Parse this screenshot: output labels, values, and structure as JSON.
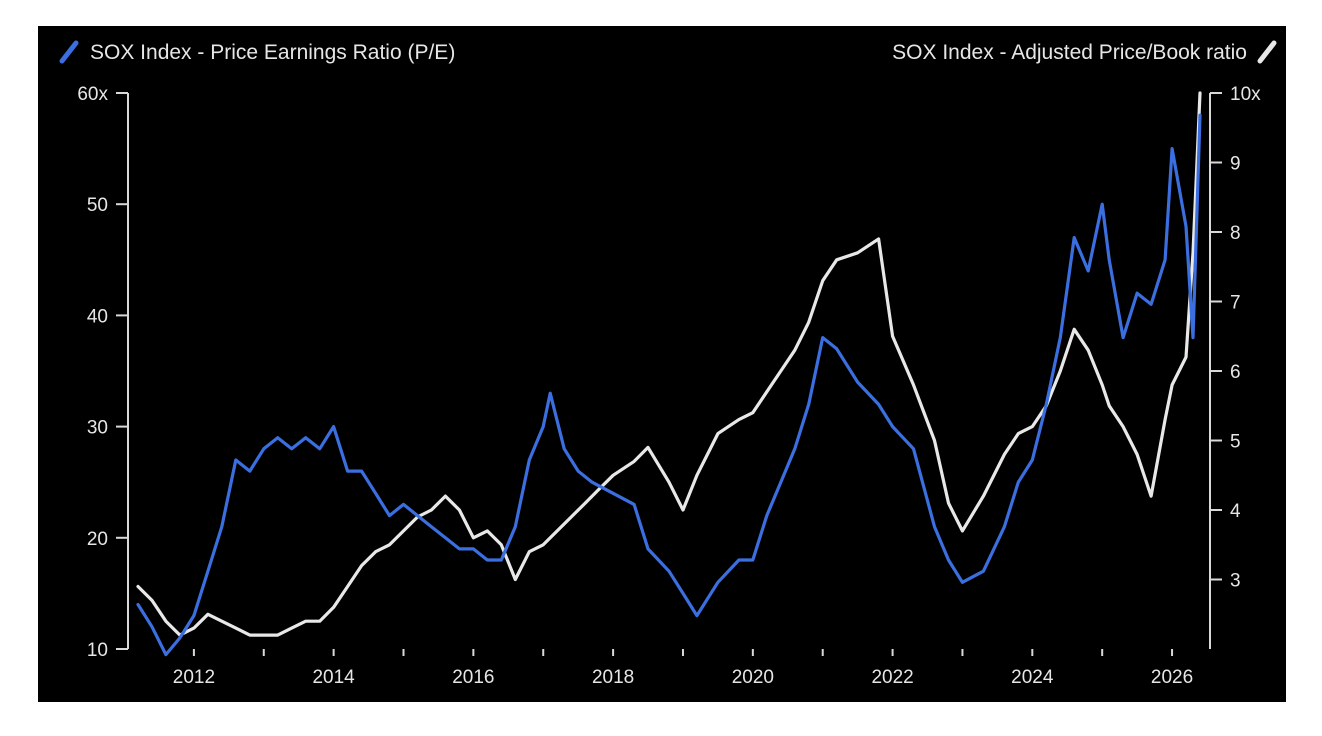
{
  "chart_data": {
    "type": "line",
    "left_axis_title": "SOX Index - Price Earnings Ratio (P/E)",
    "right_axis_title": "SOX Index - Adjusted Price/Book ratio",
    "x_range": [
      2011.2,
      2026.4
    ],
    "x_ticks": [
      "2012",
      "2014",
      "2016",
      "2018",
      "2020",
      "2022",
      "2024",
      "2026"
    ],
    "y_left": {
      "range": [
        10,
        60
      ],
      "ticks": [
        "10",
        "20",
        "30",
        "40",
        "50",
        "60x"
      ]
    },
    "y_right": {
      "range": [
        2,
        10
      ],
      "ticks": [
        "3",
        "4",
        "5",
        "6",
        "7",
        "8",
        "9",
        "10x"
      ]
    },
    "grid": false,
    "legend": "top",
    "colors": {
      "background": "#000000",
      "pe": "#3b6fe0",
      "pb": "#e8e8e8",
      "axis": "#d9d9d9"
    },
    "series": [
      {
        "name": "SOX Index - Price Earnings Ratio (P/E)",
        "axis": "left",
        "color": "#3b6fe0",
        "x": [
          2011.2,
          2011.4,
          2011.6,
          2011.8,
          2012.0,
          2012.2,
          2012.4,
          2012.6,
          2012.8,
          2013.0,
          2013.2,
          2013.4,
          2013.6,
          2013.8,
          2014.0,
          2014.2,
          2014.4,
          2014.6,
          2014.8,
          2015.0,
          2015.2,
          2015.4,
          2015.6,
          2015.8,
          2016.0,
          2016.2,
          2016.4,
          2016.6,
          2016.8,
          2017.0,
          2017.1,
          2017.3,
          2017.5,
          2017.7,
          2018.0,
          2018.3,
          2018.5,
          2018.8,
          2019.0,
          2019.2,
          2019.5,
          2019.8,
          2020.0,
          2020.2,
          2020.4,
          2020.6,
          2020.8,
          2021.0,
          2021.2,
          2021.5,
          2021.8,
          2022.0,
          2022.3,
          2022.6,
          2022.8,
          2023.0,
          2023.3,
          2023.6,
          2023.8,
          2024.0,
          2024.2,
          2024.4,
          2024.6,
          2024.8,
          2025.0,
          2025.1,
          2025.3,
          2025.5,
          2025.7,
          2025.9,
          2026.0,
          2026.2,
          2026.3,
          2026.4
        ],
        "y": [
          14,
          12,
          9.5,
          11,
          13,
          17,
          21,
          27,
          26,
          28,
          29,
          28,
          29,
          28,
          30,
          26,
          26,
          24,
          22,
          23,
          22,
          21,
          20,
          19,
          19,
          18,
          18,
          21,
          27,
          30,
          33,
          28,
          26,
          25,
          24,
          23,
          19,
          17,
          15,
          13,
          16,
          18,
          18,
          22,
          25,
          28,
          32,
          38,
          37,
          34,
          32,
          30,
          28,
          21,
          18,
          16,
          17,
          21,
          25,
          27,
          32,
          38,
          47,
          44,
          50,
          45,
          38,
          42,
          41,
          45,
          55,
          48,
          38,
          58
        ]
      },
      {
        "name": "SOX Index - Adjusted Price/Book ratio",
        "axis": "right",
        "color": "#e8e8e8",
        "x": [
          2011.2,
          2011.4,
          2011.6,
          2011.8,
          2012.0,
          2012.2,
          2012.4,
          2012.6,
          2012.8,
          2013.0,
          2013.2,
          2013.4,
          2013.6,
          2013.8,
          2014.0,
          2014.2,
          2014.4,
          2014.6,
          2014.8,
          2015.0,
          2015.2,
          2015.4,
          2015.6,
          2015.8,
          2016.0,
          2016.2,
          2016.4,
          2016.6,
          2016.8,
          2017.0,
          2017.2,
          2017.4,
          2017.6,
          2017.8,
          2018.0,
          2018.3,
          2018.5,
          2018.8,
          2019.0,
          2019.2,
          2019.5,
          2019.8,
          2020.0,
          2020.2,
          2020.4,
          2020.6,
          2020.8,
          2021.0,
          2021.2,
          2021.5,
          2021.8,
          2022.0,
          2022.3,
          2022.6,
          2022.8,
          2023.0,
          2023.3,
          2023.6,
          2023.8,
          2024.0,
          2024.2,
          2024.4,
          2024.6,
          2024.8,
          2025.0,
          2025.1,
          2025.3,
          2025.5,
          2025.7,
          2025.9,
          2026.0,
          2026.2,
          2026.3,
          2026.4
        ],
        "y": [
          2.9,
          2.7,
          2.4,
          2.2,
          2.3,
          2.5,
          2.4,
          2.3,
          2.2,
          2.2,
          2.2,
          2.3,
          2.4,
          2.4,
          2.6,
          2.9,
          3.2,
          3.4,
          3.5,
          3.7,
          3.9,
          4.0,
          4.2,
          4.0,
          3.6,
          3.7,
          3.5,
          3.0,
          3.4,
          3.5,
          3.7,
          3.9,
          4.1,
          4.3,
          4.5,
          4.7,
          4.9,
          4.4,
          4.0,
          4.5,
          5.1,
          5.3,
          5.4,
          5.7,
          6.0,
          6.3,
          6.7,
          7.3,
          7.6,
          7.7,
          7.9,
          6.5,
          5.8,
          5.0,
          4.1,
          3.7,
          4.2,
          4.8,
          5.1,
          5.2,
          5.5,
          6.0,
          6.6,
          6.3,
          5.8,
          5.5,
          5.2,
          4.8,
          4.2,
          5.3,
          5.8,
          6.2,
          7.7,
          10.0
        ]
      }
    ]
  }
}
